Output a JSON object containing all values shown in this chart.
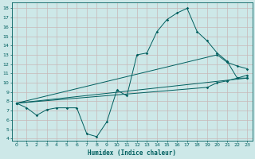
{
  "bg_color": "#cde8e8",
  "grid_color": "#c8b8b8",
  "line_color": "#005f5f",
  "xlabel": "Humidex (Indice chaleur)",
  "xlim": [
    -0.5,
    23.5
  ],
  "ylim": [
    3.8,
    18.6
  ],
  "xticks": [
    0,
    1,
    2,
    3,
    4,
    5,
    6,
    7,
    8,
    9,
    10,
    11,
    12,
    13,
    14,
    15,
    16,
    17,
    18,
    19,
    20,
    21,
    22,
    23
  ],
  "yticks": [
    4,
    5,
    6,
    7,
    8,
    9,
    10,
    11,
    12,
    13,
    14,
    15,
    16,
    17,
    18
  ],
  "curve1_x": [
    0,
    1,
    2,
    3,
    4,
    5,
    6,
    7,
    8,
    9,
    10,
    11,
    12,
    13,
    14,
    15,
    16,
    17,
    18,
    19,
    20,
    21,
    22,
    23
  ],
  "curve1_y": [
    7.8,
    7.3,
    6.5,
    7.1,
    7.3,
    7.3,
    7.3,
    4.5,
    4.2,
    5.8,
    9.2,
    8.6,
    13.0,
    13.2,
    15.5,
    16.8,
    17.5,
    18.0,
    15.5,
    14.5,
    13.2,
    12.3,
    10.5,
    10.5
  ],
  "line2_x": [
    0,
    23
  ],
  "line2_y": [
    7.8,
    10.5
  ],
  "line3_x": [
    0,
    20,
    21,
    22,
    23
  ],
  "line3_y": [
    7.8,
    13.0,
    12.2,
    11.8,
    11.5
  ],
  "line4_x": [
    0,
    19,
    20,
    21,
    22,
    23
  ],
  "line4_y": [
    7.8,
    9.5,
    10.0,
    10.2,
    10.5,
    10.8
  ]
}
